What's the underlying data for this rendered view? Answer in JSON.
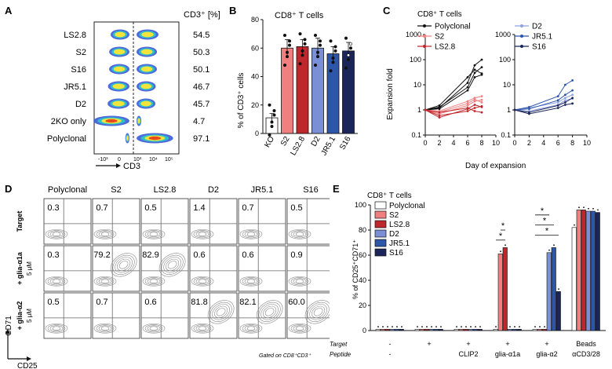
{
  "panels": {
    "A": "A",
    "B": "B",
    "C": "C",
    "D": "D",
    "E": "E"
  },
  "colors": {
    "polyclonal": "#ffffff",
    "s2": "#f08080",
    "ls28": "#c0272d",
    "d2": "#7b8fd6",
    "jr51": "#2d55a8",
    "s16": "#1c2559",
    "ko": "#ffffff",
    "lineRed": "#e0575a",
    "lineBlue": "#5570c2"
  },
  "panelA": {
    "header": "CD3⁺ [%]",
    "xlabel": "CD3",
    "ticks": [
      "-10³",
      "0",
      "10³",
      "10⁴",
      "10⁵"
    ],
    "rows": [
      {
        "label": "LS2.8",
        "value": "54.5",
        "frac": 0.545
      },
      {
        "label": "S2",
        "value": "50.3",
        "frac": 0.503
      },
      {
        "label": "S16",
        "value": "50.1",
        "frac": 0.501
      },
      {
        "label": "JR5.1",
        "value": "46.7",
        "frac": 0.467
      },
      {
        "label": "D2",
        "value": "45.7",
        "frac": 0.457
      },
      {
        "label": "2KO only",
        "value": "4.7",
        "frac": 0.047
      },
      {
        "label": "Polyclonal",
        "value": "97.1",
        "frac": 0.971
      }
    ]
  },
  "chart_data": [
    {
      "type": "bar",
      "title": "CD8⁺ T cells",
      "ylabel": "% of CD3⁺ cells",
      "ylim": [
        0,
        80
      ],
      "yticks": [
        "0",
        "20",
        "40",
        "60",
        "80"
      ],
      "categories": [
        "KO",
        "S2",
        "LS2.8",
        "D2",
        "JR5.1",
        "S16"
      ],
      "values": [
        11,
        60,
        61,
        60,
        56,
        58
      ],
      "errors": [
        3,
        6,
        5,
        7,
        5,
        6
      ]
    },
    {
      "type": "line",
      "title": "CD8⁺ T cells",
      "xlabel": "Day of expansion",
      "ylabel": "Expansion fold",
      "yscale": "log",
      "ylim": [
        0.1,
        1000
      ],
      "xlim": [
        0,
        10
      ],
      "xticks": [
        "0",
        "2",
        "4",
        "6",
        "8",
        "10"
      ],
      "yticks": [
        "0.1",
        "1",
        "10",
        "100",
        "1000"
      ],
      "left_legend": [
        "Polyclonal",
        "S2",
        "LS2.8"
      ],
      "right_legend": [
        "D2",
        "JR5.1",
        "S16"
      ],
      "x": [
        0,
        2,
        6,
        7,
        8
      ],
      "left_series": [
        {
          "group": "Polyclonal",
          "values": [
            1,
            1.3,
            8,
            30,
            50
          ]
        },
        {
          "group": "Polyclonal",
          "values": [
            1,
            1.2,
            12,
            60,
            100
          ]
        },
        {
          "group": "Polyclonal",
          "values": [
            1,
            1.5,
            20,
            40,
            28
          ]
        },
        {
          "group": "Polyclonal",
          "values": [
            1,
            1.1,
            6,
            20,
            25
          ]
        },
        {
          "group": "S2",
          "values": [
            1,
            0.9,
            2.2,
            3,
            3.5
          ]
        },
        {
          "group": "S2",
          "values": [
            1,
            0.7,
            1.5,
            2.2,
            2.5
          ]
        },
        {
          "group": "S2",
          "values": [
            1,
            0.8,
            1.8,
            2.6,
            2
          ]
        },
        {
          "group": "LS2.8",
          "values": [
            1,
            0.6,
            0.9,
            1.2,
            1.4
          ]
        },
        {
          "group": "LS2.8",
          "values": [
            1,
            0.8,
            1.2,
            0.9,
            0.8
          ]
        },
        {
          "group": "LS2.8",
          "values": [
            1,
            0.5,
            1.1,
            1.6,
            1.3
          ]
        }
      ],
      "right_series": [
        {
          "group": "D2",
          "values": [
            1,
            1.2,
            2,
            3,
            4
          ]
        },
        {
          "group": "D2",
          "values": [
            1,
            0.9,
            1.6,
            2.4,
            2.8
          ]
        },
        {
          "group": "JR5.1",
          "values": [
            1,
            1.3,
            3.5,
            10,
            15
          ]
        },
        {
          "group": "JR5.1",
          "values": [
            1,
            1.1,
            2.4,
            4,
            6
          ]
        },
        {
          "group": "S16",
          "values": [
            1,
            0.8,
            1.5,
            2,
            3
          ]
        },
        {
          "group": "S16",
          "values": [
            1,
            0.7,
            1.2,
            1.6,
            1.8
          ]
        }
      ]
    },
    {
      "type": "bar",
      "title": "CD8⁺ T cells",
      "ylabel": "% of CD25⁺CD71⁺",
      "ylim": [
        0,
        100
      ],
      "yticks": [
        "0",
        "20",
        "40",
        "60",
        "80",
        "100"
      ],
      "legend": [
        "Polyclonal",
        "S2",
        "LS2.8",
        "D2",
        "JR5.1",
        "S16"
      ],
      "groups": [
        {
          "target": "-",
          "peptide": "-",
          "values": [
            1,
            1,
            1,
            1,
            1,
            1
          ]
        },
        {
          "target": "+",
          "peptide": "",
          "values": [
            1,
            1,
            1,
            1,
            1,
            1
          ]
        },
        {
          "target": "+",
          "peptide": "CLIP2",
          "values": [
            1,
            1,
            1,
            1,
            1,
            1
          ]
        },
        {
          "target": "+",
          "peptide": "glia-α1a",
          "values": [
            1,
            61,
            66,
            1,
            1,
            1
          ]
        },
        {
          "target": "+",
          "peptide": "glia-α2",
          "values": [
            1,
            1,
            1,
            62,
            66,
            31
          ]
        },
        {
          "target": "Beads",
          "peptide": "αCD3/28",
          "values": [
            82,
            96,
            96,
            95,
            95,
            94
          ]
        }
      ],
      "row_labels": [
        "Target",
        "Peptide"
      ],
      "significance": "*"
    }
  ],
  "panelD": {
    "columns": [
      "Polyclonal",
      "S2",
      "LS2.8",
      "D2",
      "JR5.1",
      "S16"
    ],
    "rows": [
      {
        "label": "Target",
        "sub": "",
        "values": [
          "0.3",
          "0.7",
          "0.5",
          "1.4",
          "0.7",
          "0.5"
        ],
        "hi": [
          0,
          0,
          0,
          0,
          0,
          0
        ]
      },
      {
        "label": "+ glia-α1a",
        "sub": "5 μM",
        "values": [
          "0.3",
          "79.2",
          "82.9",
          "0.6",
          "0.6",
          "0.9"
        ],
        "hi": [
          0,
          1,
          1,
          0,
          0,
          0
        ]
      },
      {
        "label": "+ glia-α2",
        "sub": "5 μM",
        "values": [
          "0.5",
          "0.7",
          "0.6",
          "81.8",
          "82.1",
          "60.0"
        ],
        "hi": [
          0,
          0,
          0,
          1,
          1,
          1
        ]
      }
    ],
    "yaxis": "CD71",
    "xaxis": "CD25",
    "gated": "Gated on CD8⁺CD3⁺"
  }
}
